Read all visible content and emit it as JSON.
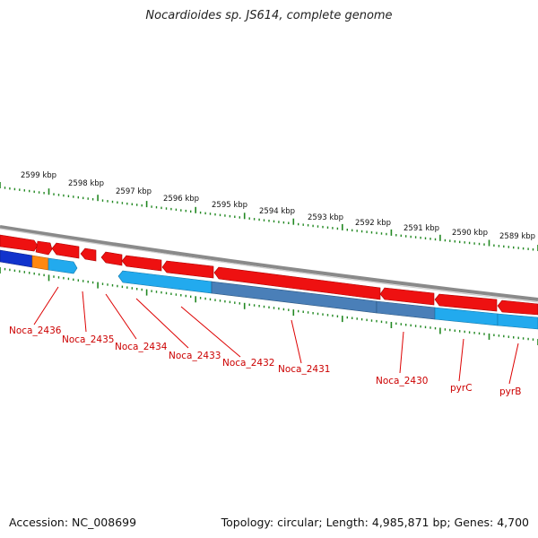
{
  "title": "Nocardioides sp. JS614, complete genome",
  "footer": {
    "accession": "Accession: NC_008699",
    "summary": "Topology: circular; Length: 4,985,871 bp; Genes: 4,700"
  },
  "colors": {
    "forward_gene": "#ee1111",
    "reverse_gene": "#22aaee",
    "reverse_gene_dark": "#4a7fb8",
    "backbone": "#8a8a8a",
    "tick": "#228822",
    "label": "#cc0000",
    "dark_blue_gene": "#1133cc",
    "orange_gene": "#ff8811"
  },
  "scale_labels": [
    "2599 kbp",
    "2598 kbp",
    "2597 kbp",
    "2596 kbp",
    "2595 kbp",
    "2594 kbp",
    "2593 kbp",
    "2592 kbp",
    "2591 kbp",
    "2590 kbp",
    "2589 kbp"
  ],
  "gene_labels": [
    "Noca_2436",
    "Noca_2435",
    "Noca_2434",
    "Noca_2433",
    "Noca_2432",
    "Noca_2431",
    "Noca_2430",
    "pyrC",
    "pyrB"
  ]
}
